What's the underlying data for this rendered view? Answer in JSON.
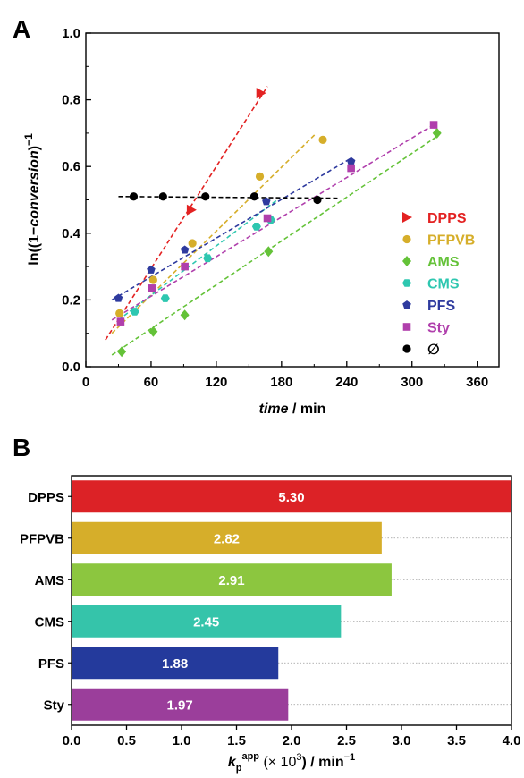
{
  "chart_data": [
    {
      "panel": "A",
      "type": "scatter",
      "xlabel_italic": "time",
      "xlabel_rest": " / min",
      "ylabel_pre": "ln((1−",
      "ylabel_italic": "conversion",
      "ylabel_post": ")",
      "ylabel_sup": "−1",
      "xlim": [
        0,
        380
      ],
      "ylim": [
        0.0,
        1.0
      ],
      "xticks": [
        0,
        60,
        120,
        180,
        240,
        300,
        360
      ],
      "yticks": [
        0.0,
        0.2,
        0.4,
        0.6,
        0.8,
        1.0
      ],
      "legend_position": "right",
      "series": [
        {
          "name": "DPPS",
          "color": "#e32222",
          "marker": "triangle-right",
          "points": [
            [
              97,
              0.47
            ],
            [
              161,
              0.82
            ]
          ],
          "fit": [
            [
              18,
              0.08
            ],
            [
              167,
              0.84
            ]
          ]
        },
        {
          "name": "PFPVB",
          "color": "#d6ae2a",
          "marker": "circle",
          "points": [
            [
              31,
              0.16
            ],
            [
              62,
              0.26
            ],
            [
              98,
              0.37
            ],
            [
              160,
              0.57
            ],
            [
              218,
              0.68
            ]
          ],
          "fit": [
            [
              24,
              0.1
            ],
            [
              212,
              0.7
            ]
          ]
        },
        {
          "name": "AMS",
          "color": "#64c238",
          "marker": "diamond",
          "points": [
            [
              33,
              0.045
            ],
            [
              62,
              0.105
            ],
            [
              91,
              0.155
            ],
            [
              168,
              0.345
            ],
            [
              323,
              0.7
            ]
          ],
          "fit": [
            [
              24,
              0.035
            ],
            [
              323,
              0.69
            ]
          ]
        },
        {
          "name": "CMS",
          "color": "#2ec7b0",
          "marker": "hexagon",
          "points": [
            [
              45,
              0.165
            ],
            [
              73,
              0.205
            ],
            [
              112,
              0.325
            ],
            [
              157,
              0.42
            ],
            [
              170,
              0.44
            ]
          ],
          "fit": [
            [
              30,
              0.14
            ],
            [
              176,
              0.5
            ]
          ]
        },
        {
          "name": "PFS",
          "color": "#2e3a9e",
          "marker": "pentagon",
          "points": [
            [
              30,
              0.205
            ],
            [
              60,
              0.29
            ],
            [
              91,
              0.35
            ],
            [
              166,
              0.495
            ],
            [
              244,
              0.615
            ]
          ],
          "fit": [
            [
              24,
              0.2
            ],
            [
              244,
              0.625
            ]
          ]
        },
        {
          "name": "Sty",
          "color": "#b03fac",
          "marker": "square",
          "points": [
            [
              32,
              0.135
            ],
            [
              61,
              0.235
            ],
            [
              91,
              0.3
            ],
            [
              167,
              0.445
            ],
            [
              244,
              0.595
            ],
            [
              320,
              0.725
            ]
          ],
          "fit": [
            [
              24,
              0.14
            ],
            [
              320,
              0.725
            ]
          ]
        },
        {
          "name": "∅",
          "color": "#000000",
          "marker": "circle",
          "points": [
            [
              44,
              0.51
            ],
            [
              71,
              0.51
            ],
            [
              110,
              0.51
            ],
            [
              155,
              0.51
            ],
            [
              213,
              0.5
            ]
          ],
          "fit": [
            [
              30,
              0.51
            ],
            [
              232,
              0.505
            ]
          ]
        }
      ]
    },
    {
      "panel": "B",
      "type": "bar",
      "orientation": "horizontal",
      "xlabel_main": "k",
      "xlabel_sub": "p",
      "xlabel_sup": "app",
      "xlabel_rest": " (× 10",
      "xlabel_sup2": "3",
      "xlabel_rest2": ") / min",
      "xlabel_sup3": "−1",
      "xlim": [
        0.0,
        4.0
      ],
      "xticks": [
        0.0,
        0.5,
        1.0,
        1.5,
        2.0,
        2.5,
        3.0,
        3.5,
        4.0
      ],
      "categories": [
        "DPPS",
        "PFPVB",
        "AMS",
        "CMS",
        "PFS",
        "Sty"
      ],
      "values": [
        5.3,
        2.82,
        2.91,
        2.45,
        1.88,
        1.97
      ],
      "value_labels": [
        "5.30",
        "2.82",
        "2.91",
        "2.45",
        "1.88",
        "1.97"
      ],
      "colors": [
        "#dc2226",
        "#d6ae2a",
        "#8cc63f",
        "#35c4aa",
        "#243a9c",
        "#9b3e9b"
      ]
    }
  ]
}
